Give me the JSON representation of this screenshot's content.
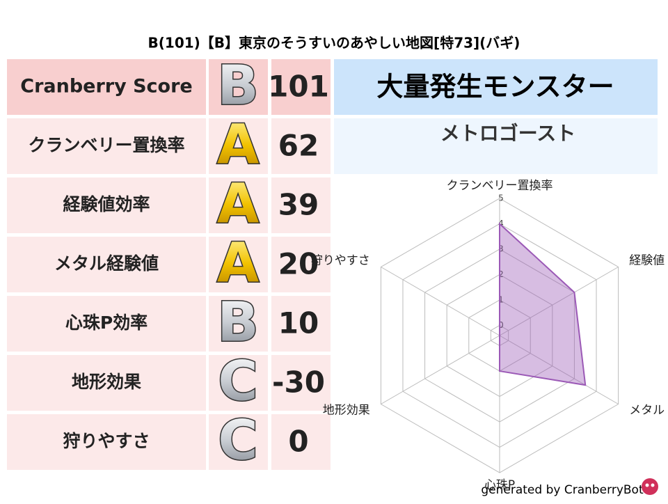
{
  "title": "B(101)【B】東京のそうすいのあやしい地図[特73](バギ)",
  "table": {
    "rows": [
      {
        "label": "Cranberry Score",
        "grade": "B",
        "score": 101
      },
      {
        "label": "クランベリー置換率",
        "grade": "A",
        "score": 62
      },
      {
        "label": "経験値効率",
        "grade": "A",
        "score": 39
      },
      {
        "label": "メタル経験値",
        "grade": "A",
        "score": 20
      },
      {
        "label": "心珠P効率",
        "grade": "B",
        "score": 10
      },
      {
        "label": "地形効果",
        "grade": "C",
        "score": -30
      },
      {
        "label": "狩りやすさ",
        "grade": "C",
        "score": 0
      }
    ]
  },
  "panel": {
    "title": "大量発生モンスター",
    "subtitle": "メトロゴースト"
  },
  "chart_data": {
    "type": "radar",
    "categories": [
      "クランベリー置換率",
      "経験値",
      "メタル",
      "心珠P",
      "地形効果",
      "狩りやすさ"
    ],
    "values": [
      4,
      3,
      3.5,
      1,
      -0.4,
      -0.4
    ],
    "rlim": [
      -0.4,
      5
    ],
    "rticks": [
      0,
      1,
      2,
      3,
      4,
      5
    ],
    "color": "#9b59b6",
    "grid": true
  },
  "footer": "generated by CranberryBot"
}
